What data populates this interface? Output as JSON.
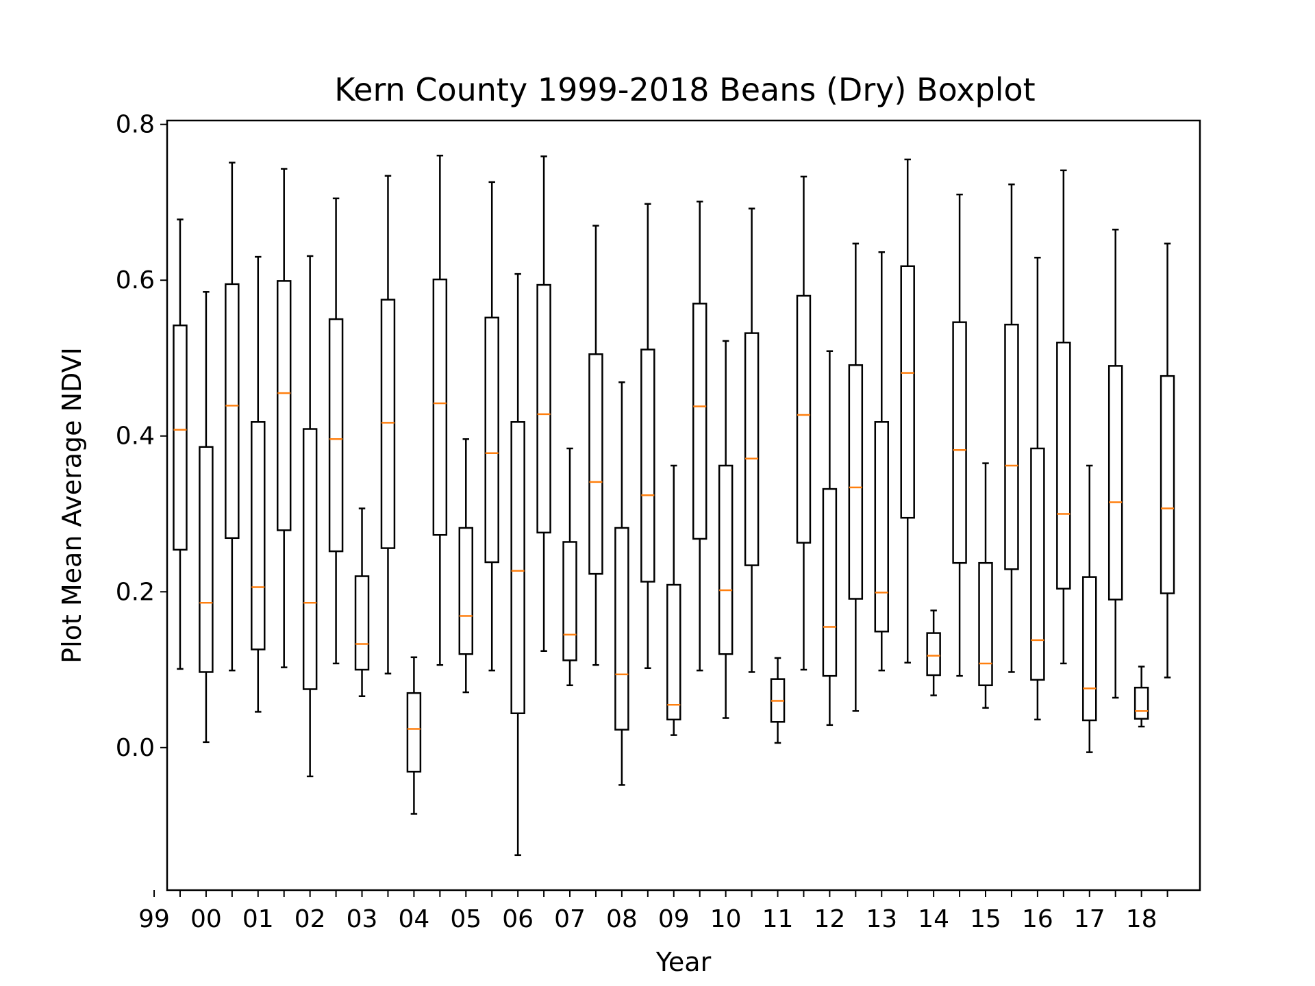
{
  "chart_data": {
    "type": "box",
    "title": "Kern County 1999-2018 Beans (Dry) Boxplot",
    "xlabel": "Year",
    "ylabel": "Plot Mean Average NDVI",
    "ylim": [
      -0.183,
      0.805
    ],
    "yticks": [
      0.0,
      0.2,
      0.4,
      0.6,
      0.8
    ],
    "ytick_labels": [
      "0.0",
      "0.2",
      "0.4",
      "0.6",
      "0.8"
    ],
    "xlim": [
      0.5,
      40.25
    ],
    "xtick_labels": [
      "99",
      "00",
      "01",
      "02",
      "03",
      "04",
      "05",
      "06",
      "07",
      "08",
      "09",
      "10",
      "11",
      "12",
      "13",
      "14",
      "15",
      "16",
      "17",
      "18"
    ],
    "grid": false,
    "colors": {
      "box": "#000000",
      "median": "#ff7f0e"
    },
    "boxes": [
      {
        "low": 0.101,
        "q1": 0.254,
        "median": 0.408,
        "q3": 0.542,
        "high": 0.678
      },
      {
        "low": 0.007,
        "q1": 0.097,
        "median": 0.186,
        "q3": 0.386,
        "high": 0.585
      },
      {
        "low": 0.099,
        "q1": 0.269,
        "median": 0.439,
        "q3": 0.595,
        "high": 0.751
      },
      {
        "low": 0.046,
        "q1": 0.126,
        "median": 0.206,
        "q3": 0.418,
        "high": 0.63
      },
      {
        "low": 0.103,
        "q1": 0.279,
        "median": 0.455,
        "q3": 0.599,
        "high": 0.743
      },
      {
        "low": -0.037,
        "q1": 0.075,
        "median": 0.186,
        "q3": 0.409,
        "high": 0.631
      },
      {
        "low": 0.108,
        "q1": 0.252,
        "median": 0.396,
        "q3": 0.55,
        "high": 0.705
      },
      {
        "low": 0.066,
        "q1": 0.1,
        "median": 0.133,
        "q3": 0.22,
        "high": 0.307
      },
      {
        "low": 0.095,
        "q1": 0.256,
        "median": 0.417,
        "q3": 0.575,
        "high": 0.734
      },
      {
        "low": -0.085,
        "q1": -0.031,
        "median": 0.024,
        "q3": 0.07,
        "high": 0.116
      },
      {
        "low": 0.106,
        "q1": 0.273,
        "median": 0.442,
        "q3": 0.601,
        "high": 0.76
      },
      {
        "low": 0.071,
        "q1": 0.12,
        "median": 0.169,
        "q3": 0.282,
        "high": 0.396
      },
      {
        "low": 0.099,
        "q1": 0.238,
        "median": 0.378,
        "q3": 0.552,
        "high": 0.726
      },
      {
        "low": -0.138,
        "q1": 0.044,
        "median": 0.227,
        "q3": 0.418,
        "high": 0.608
      },
      {
        "low": 0.124,
        "q1": 0.276,
        "median": 0.428,
        "q3": 0.594,
        "high": 0.759
      },
      {
        "low": 0.08,
        "q1": 0.112,
        "median": 0.145,
        "q3": 0.264,
        "high": 0.384
      },
      {
        "low": 0.106,
        "q1": 0.223,
        "median": 0.341,
        "q3": 0.505,
        "high": 0.67
      },
      {
        "low": -0.048,
        "q1": 0.023,
        "median": 0.094,
        "q3": 0.282,
        "high": 0.469
      },
      {
        "low": 0.102,
        "q1": 0.213,
        "median": 0.324,
        "q3": 0.511,
        "high": 0.698
      },
      {
        "low": 0.016,
        "q1": 0.036,
        "median": 0.055,
        "q3": 0.209,
        "high": 0.362
      },
      {
        "low": 0.099,
        "q1": 0.268,
        "median": 0.438,
        "q3": 0.57,
        "high": 0.701
      },
      {
        "low": 0.038,
        "q1": 0.12,
        "median": 0.202,
        "q3": 0.362,
        "high": 0.522
      },
      {
        "low": 0.097,
        "q1": 0.234,
        "median": 0.371,
        "q3": 0.532,
        "high": 0.692
      },
      {
        "low": 0.006,
        "q1": 0.033,
        "median": 0.06,
        "q3": 0.088,
        "high": 0.115
      },
      {
        "low": 0.1,
        "q1": 0.263,
        "median": 0.427,
        "q3": 0.58,
        "high": 0.733
      },
      {
        "low": 0.029,
        "q1": 0.092,
        "median": 0.155,
        "q3": 0.332,
        "high": 0.509
      },
      {
        "low": 0.047,
        "q1": 0.191,
        "median": 0.334,
        "q3": 0.491,
        "high": 0.647
      },
      {
        "low": 0.099,
        "q1": 0.149,
        "median": 0.199,
        "q3": 0.418,
        "high": 0.636
      },
      {
        "low": 0.109,
        "q1": 0.295,
        "median": 0.481,
        "q3": 0.618,
        "high": 0.755
      },
      {
        "low": 0.067,
        "q1": 0.093,
        "median": 0.118,
        "q3": 0.147,
        "high": 0.176
      },
      {
        "low": 0.092,
        "q1": 0.237,
        "median": 0.382,
        "q3": 0.546,
        "high": 0.71
      },
      {
        "low": 0.051,
        "q1": 0.08,
        "median": 0.108,
        "q3": 0.237,
        "high": 0.365
      },
      {
        "low": 0.097,
        "q1": 0.229,
        "median": 0.362,
        "q3": 0.543,
        "high": 0.723
      },
      {
        "low": 0.036,
        "q1": 0.087,
        "median": 0.138,
        "q3": 0.384,
        "high": 0.629
      },
      {
        "low": 0.108,
        "q1": 0.204,
        "median": 0.3,
        "q3": 0.52,
        "high": 0.741
      },
      {
        "low": -0.006,
        "q1": 0.035,
        "median": 0.076,
        "q3": 0.219,
        "high": 0.362
      },
      {
        "low": 0.064,
        "q1": 0.19,
        "median": 0.315,
        "q3": 0.49,
        "high": 0.665
      },
      {
        "low": 0.027,
        "q1": 0.037,
        "median": 0.047,
        "q3": 0.077,
        "high": 0.104
      },
      {
        "low": 0.09,
        "q1": 0.198,
        "median": 0.307,
        "q3": 0.477,
        "high": 0.647
      }
    ]
  }
}
